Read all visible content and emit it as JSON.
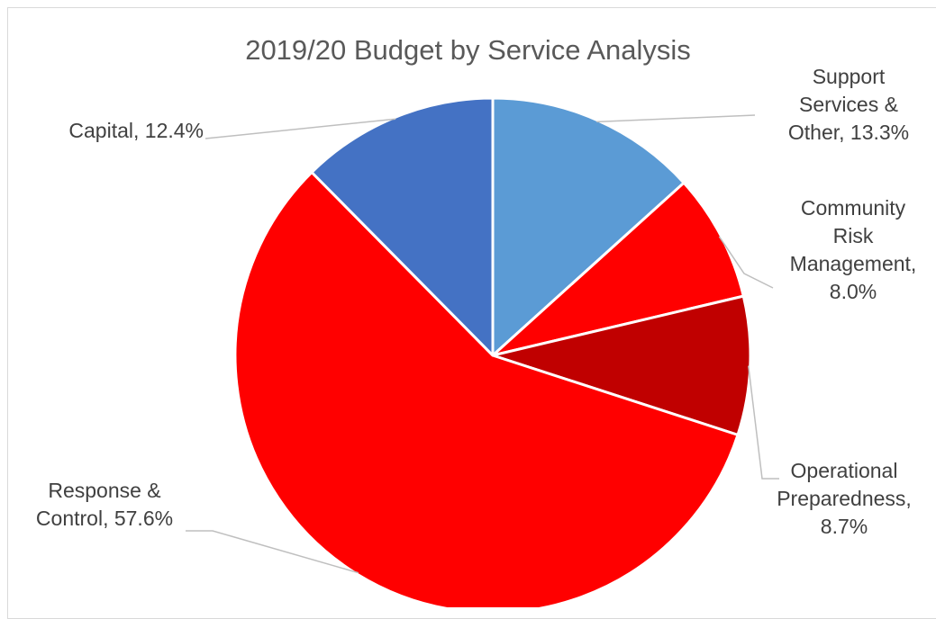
{
  "chart_data": {
    "type": "pie",
    "title": "2019/20 Budget by Service Analysis",
    "slices": [
      {
        "name": "Support Services & Other",
        "value": 13.3,
        "label_lines": [
          "Support",
          "Services &",
          "Other, 13.3%"
        ],
        "color": "#5b9bd5"
      },
      {
        "name": "Community Risk Management",
        "value": 8.0,
        "label_lines": [
          "Community",
          "Risk",
          "Management,",
          "8.0%"
        ],
        "color": "#ff0000"
      },
      {
        "name": "Operational Preparedness",
        "value": 8.7,
        "label_lines": [
          "Operational",
          "Preparedness,",
          "8.7%"
        ],
        "color": "#c00000"
      },
      {
        "name": "Response & Control",
        "value": 57.6,
        "label_lines": [
          "Response &",
          "Control, 57.6%"
        ],
        "color": "#ff0000"
      },
      {
        "name": "Capital",
        "value": 12.4,
        "label_lines": [
          "Capital, 12.4%"
        ],
        "color": "#4472c4"
      }
    ],
    "start_angle": "12 o'clock",
    "direction": "clockwise",
    "legend": "none",
    "data_labels": "outside with leader lines"
  }
}
